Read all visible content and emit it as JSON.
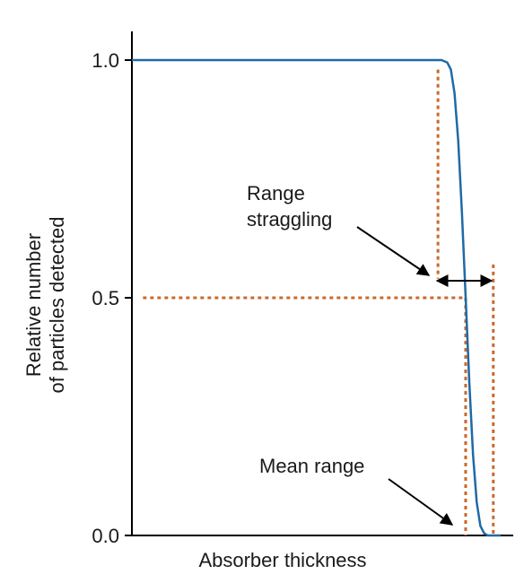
{
  "chart_data": {
    "type": "line",
    "title": "",
    "xlabel": "Absorber thickness",
    "ylabel_lines": [
      "Relative number",
      "of particles detected"
    ],
    "yticks": [
      {
        "value": 0.0,
        "label": "0.0"
      },
      {
        "value": 0.5,
        "label": "0.5"
      },
      {
        "value": 1.0,
        "label": "1.0"
      }
    ],
    "xlim": [
      0,
      1
    ],
    "ylim": [
      0,
      1.1
    ],
    "grid": false,
    "series": [
      {
        "values_description_free": true,
        "x": [
          0.0,
          0.5,
          0.84,
          0.855,
          0.865,
          0.875,
          0.885,
          0.895,
          0.905,
          0.915,
          0.925,
          0.935,
          0.945,
          0.955,
          0.965,
          0.98,
          1.0
        ],
        "y": [
          1.0,
          1.0,
          1.0,
          0.995,
          0.98,
          0.93,
          0.83,
          0.68,
          0.5,
          0.32,
          0.17,
          0.07,
          0.02,
          0.005,
          0.0,
          0.0,
          0.0
        ]
      }
    ],
    "color": "#1f6aa5",
    "guide_color": "#c8692a",
    "annotations": {
      "range_straggling": [
        "Range",
        "straggling"
      ],
      "mean_range": "Mean range"
    }
  }
}
